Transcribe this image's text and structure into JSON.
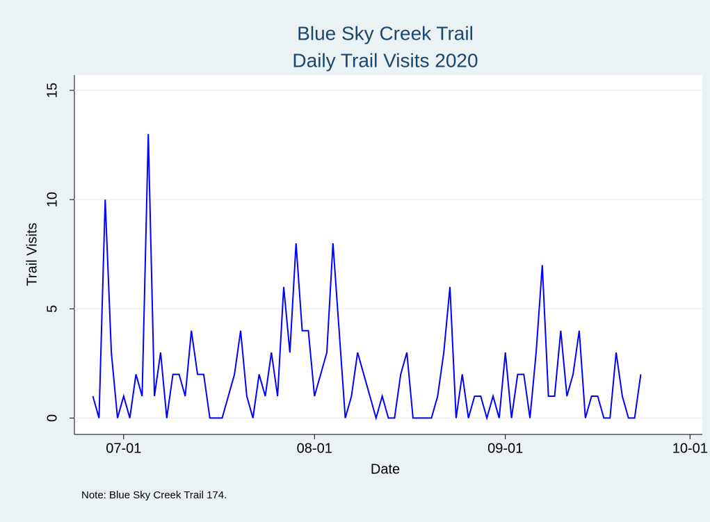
{
  "chart_data": {
    "type": "line",
    "title": "Blue Sky Creek Trail",
    "subtitle": "Daily Trail Visits 2020",
    "xlabel": "Date",
    "ylabel": "Trail Visits",
    "note": "Note: Blue Sky Creek Trail 174.",
    "color": "#0000ff",
    "x": [
      "06-26",
      "06-27",
      "06-28",
      "06-29",
      "06-30",
      "07-01",
      "07-02",
      "07-03",
      "07-04",
      "07-05",
      "07-06",
      "07-07",
      "07-08",
      "07-09",
      "07-10",
      "07-11",
      "07-12",
      "07-13",
      "07-14",
      "07-15",
      "07-16",
      "07-17",
      "07-18",
      "07-19",
      "07-20",
      "07-21",
      "07-22",
      "07-23",
      "07-24",
      "07-25",
      "07-26",
      "07-27",
      "07-28",
      "07-29",
      "07-30",
      "07-31",
      "08-01",
      "08-02",
      "08-03",
      "08-04",
      "08-05",
      "08-06",
      "08-07",
      "08-08",
      "08-09",
      "08-10",
      "08-11",
      "08-12",
      "08-13",
      "08-14",
      "08-15",
      "08-16",
      "08-17",
      "08-18",
      "08-19",
      "08-20",
      "08-21",
      "08-22",
      "08-23",
      "08-24",
      "08-25",
      "08-26",
      "08-27",
      "08-28",
      "08-29",
      "08-30",
      "08-31",
      "09-01",
      "09-02",
      "09-03",
      "09-04",
      "09-05",
      "09-06",
      "09-07",
      "09-08",
      "09-09",
      "09-10",
      "09-11",
      "09-12",
      "09-13",
      "09-14",
      "09-15",
      "09-16",
      "09-17",
      "09-18",
      "09-19",
      "09-20",
      "09-21",
      "09-22",
      "09-23"
    ],
    "values": [
      1,
      0,
      10,
      3,
      0,
      1,
      0,
      2,
      1,
      13,
      1,
      3,
      0,
      2,
      2,
      1,
      4,
      2,
      2,
      0,
      0,
      0,
      1,
      2,
      4,
      1,
      0,
      2,
      1,
      3,
      1,
      6,
      3,
      8,
      4,
      4,
      1,
      2,
      3,
      8,
      4,
      0,
      1,
      3,
      2,
      1,
      0,
      1,
      0,
      0,
      2,
      3,
      0,
      0,
      0,
      0,
      1,
      3,
      6,
      0,
      2,
      0,
      1,
      1,
      0,
      1,
      0,
      3,
      0,
      2,
      2,
      0,
      3,
      7,
      1,
      1,
      4,
      1,
      2,
      4,
      0,
      1,
      1,
      0,
      0,
      3,
      1,
      0,
      0,
      2
    ],
    "xlim": [
      "06-23",
      "10-03"
    ],
    "xticks": [
      "07-01",
      "08-01",
      "09-01",
      "10-01"
    ],
    "ylim": [
      -0.75,
      15.7
    ],
    "yticks": [
      0,
      5,
      10,
      15
    ],
    "grid": true
  }
}
